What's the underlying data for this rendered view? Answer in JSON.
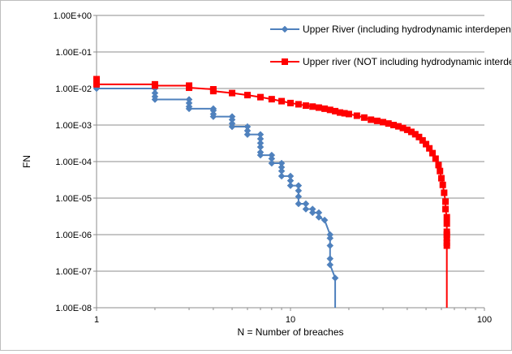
{
  "chart_data": {
    "type": "line",
    "title": "",
    "xlabel": "N = Number of breaches",
    "ylabel": "FN",
    "x_scale": "log",
    "y_scale": "log",
    "xlim": [
      1,
      100
    ],
    "ylim": [
      1e-08,
      1
    ],
    "x_ticks": [
      "1",
      "10",
      "100"
    ],
    "y_ticks": [
      "1.00E-08",
      "1.00E-07",
      "1.00E-06",
      "1.00E-05",
      "1.00E-04",
      "1.00E-03",
      "1.00E-02",
      "1.00E-01",
      "1.00E+00"
    ],
    "grid": {
      "y_major": true,
      "x_major": false
    },
    "legend_position": "top-right",
    "series": [
      {
        "name": "Upper River (including hydrodynamic interdependencies)",
        "color": "#4f81bd",
        "marker": "diamond",
        "points": [
          [
            1,
            0.01
          ],
          [
            2,
            0.01
          ],
          [
            2,
            0.0075
          ],
          [
            2,
            0.006
          ],
          [
            2,
            0.005
          ],
          [
            3,
            0.005
          ],
          [
            3,
            0.004
          ],
          [
            3,
            0.0032
          ],
          [
            3,
            0.0028
          ],
          [
            4,
            0.0028
          ],
          [
            4,
            0.0025
          ],
          [
            4,
            0.002
          ],
          [
            4,
            0.0017
          ],
          [
            5,
            0.0017
          ],
          [
            5,
            0.0014
          ],
          [
            5,
            0.0011
          ],
          [
            5,
            0.0009
          ],
          [
            6,
            0.0009
          ],
          [
            6,
            0.0007
          ],
          [
            6,
            0.00055
          ],
          [
            7,
            0.00055
          ],
          [
            7,
            0.00042
          ],
          [
            7,
            0.00032
          ],
          [
            7,
            0.00025
          ],
          [
            7,
            0.00018
          ],
          [
            7,
            0.00015
          ],
          [
            8,
            0.00015
          ],
          [
            8,
            0.00012
          ],
          [
            8,
            9e-05
          ],
          [
            9,
            9e-05
          ],
          [
            9,
            7e-05
          ],
          [
            9,
            5.5e-05
          ],
          [
            9,
            4e-05
          ],
          [
            10,
            4e-05
          ],
          [
            10,
            3e-05
          ],
          [
            10,
            2.2e-05
          ],
          [
            11,
            2.2e-05
          ],
          [
            11,
            1.6e-05
          ],
          [
            11,
            1.1e-05
          ],
          [
            11,
            7e-06
          ],
          [
            12,
            7e-06
          ],
          [
            12,
            5e-06
          ],
          [
            13,
            5e-06
          ],
          [
            13,
            4e-06
          ],
          [
            14,
            4e-06
          ],
          [
            14,
            3e-06
          ],
          [
            15,
            2.5e-06
          ],
          [
            16,
            1e-06
          ],
          [
            16,
            8e-07
          ],
          [
            16,
            5e-07
          ],
          [
            16,
            2.2e-07
          ],
          [
            16,
            1.5e-07
          ],
          [
            17,
            6.5e-08
          ],
          [
            17,
            1e-08
          ]
        ]
      },
      {
        "name": "Upper river (NOT including hydrodynamic interdependencies)",
        "color": "#ff0000",
        "marker": "square",
        "points": [
          [
            1,
            0.018
          ],
          [
            1,
            0.015
          ],
          [
            1,
            0.013
          ],
          [
            2,
            0.013
          ],
          [
            2,
            0.012
          ],
          [
            3,
            0.012
          ],
          [
            3,
            0.0105
          ],
          [
            4,
            0.0095
          ],
          [
            4,
            0.0085
          ],
          [
            5,
            0.0075
          ],
          [
            6,
            0.0066
          ],
          [
            7,
            0.0058
          ],
          [
            8,
            0.0051
          ],
          [
            9,
            0.0045
          ],
          [
            10,
            0.004
          ],
          [
            11,
            0.0037
          ],
          [
            12,
            0.0034
          ],
          [
            13,
            0.0032
          ],
          [
            14,
            0.003
          ],
          [
            15,
            0.0028
          ],
          [
            16,
            0.0026
          ],
          [
            17,
            0.0024
          ],
          [
            18,
            0.0022
          ],
          [
            19,
            0.0021
          ],
          [
            20,
            0.002
          ],
          [
            22,
            0.0018
          ],
          [
            24,
            0.0016
          ],
          [
            26,
            0.0014
          ],
          [
            28,
            0.0013
          ],
          [
            30,
            0.0012
          ],
          [
            32,
            0.0011
          ],
          [
            34,
            0.001
          ],
          [
            36,
            0.00092
          ],
          [
            38,
            0.00083
          ],
          [
            40,
            0.00074
          ],
          [
            42,
            0.00065
          ],
          [
            44,
            0.00056
          ],
          [
            46,
            0.00047
          ],
          [
            48,
            0.00038
          ],
          [
            50,
            0.0003
          ],
          [
            52,
            0.00023
          ],
          [
            54,
            0.00017
          ],
          [
            56,
            0.00012
          ],
          [
            58,
            8e-05
          ],
          [
            59,
            5.5e-05
          ],
          [
            60,
            3.5e-05
          ],
          [
            61,
            2.3e-05
          ],
          [
            62,
            1.4e-05
          ],
          [
            63,
            8e-06
          ],
          [
            63,
            5e-06
          ],
          [
            64,
            3e-06
          ],
          [
            64,
            2e-06
          ],
          [
            64,
            1.2e-06
          ],
          [
            64,
            1e-06
          ],
          [
            64,
            8e-07
          ],
          [
            64,
            6e-07
          ],
          [
            64,
            5e-07
          ],
          [
            64,
            1e-08
          ]
        ]
      }
    ]
  }
}
